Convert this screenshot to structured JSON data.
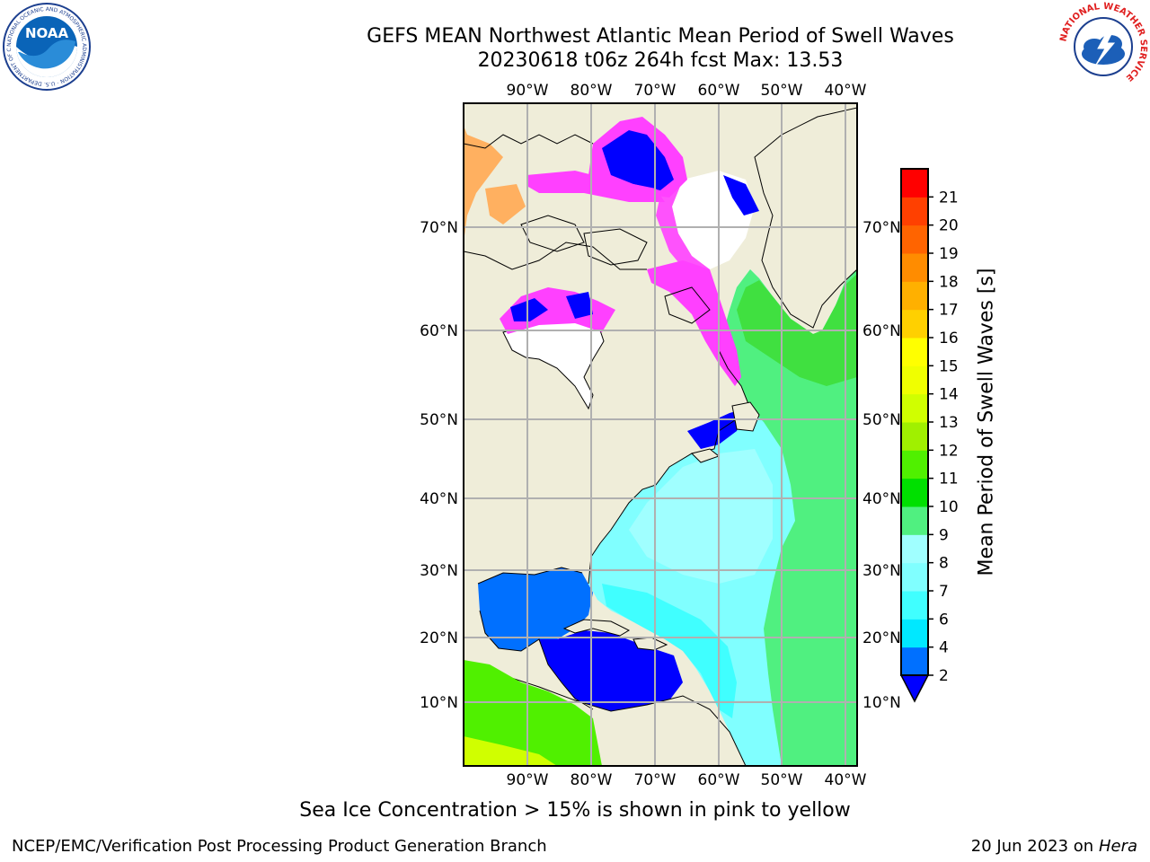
{
  "header": {
    "title_line1": "GEFS MEAN Northwest Atlantic Mean Period of Swell Waves",
    "title_line2": "20230618 t06z 264h fcst   Max: 13.53"
  },
  "logos": {
    "left": "NOAA",
    "left_ring_text": "NATIONAL OCEANIC AND ATMOSPHERIC ADMINISTRATION · U.S. DEPARTMENT OF COMMERCE",
    "right_ring_text": "NATIONAL WEATHER SERVICE"
  },
  "map": {
    "lon_labels": [
      "90°W",
      "80°W",
      "70°W",
      "60°W",
      "50°W",
      "40°W"
    ],
    "lat_labels": [
      "70°N",
      "60°N",
      "50°N",
      "40°N",
      "30°N",
      "20°N",
      "10°N"
    ],
    "land_color": "#efedd9",
    "grid_color": "#b0b0b0"
  },
  "colorbar": {
    "label": "Mean Period of Swell Waves [s]",
    "ticks": [
      "2",
      "4",
      "6",
      "7",
      "8",
      "9",
      "10",
      "11",
      "12",
      "13",
      "14",
      "15",
      "16",
      "17",
      "18",
      "19",
      "20",
      "21"
    ],
    "colors": [
      "#0070ff",
      "#00e8ff",
      "#40ffff",
      "#80ffff",
      "#a0ffff",
      "#50f080",
      "#00e000",
      "#50f000",
      "#a0f000",
      "#d0ff00",
      "#f0ff00",
      "#ffff00",
      "#ffd000",
      "#ffb000",
      "#ff8c00",
      "#ff6400",
      "#ff4000",
      "#ff0000"
    ],
    "under_color": "#0000ff"
  },
  "footer": {
    "note": "Sea Ice Concentration > 15% is shown in pink to yellow",
    "credit": "NCEP/EMC/Verification Post Processing Product Generation Branch",
    "date": "20 Jun 2023 on",
    "host": "Hera"
  }
}
